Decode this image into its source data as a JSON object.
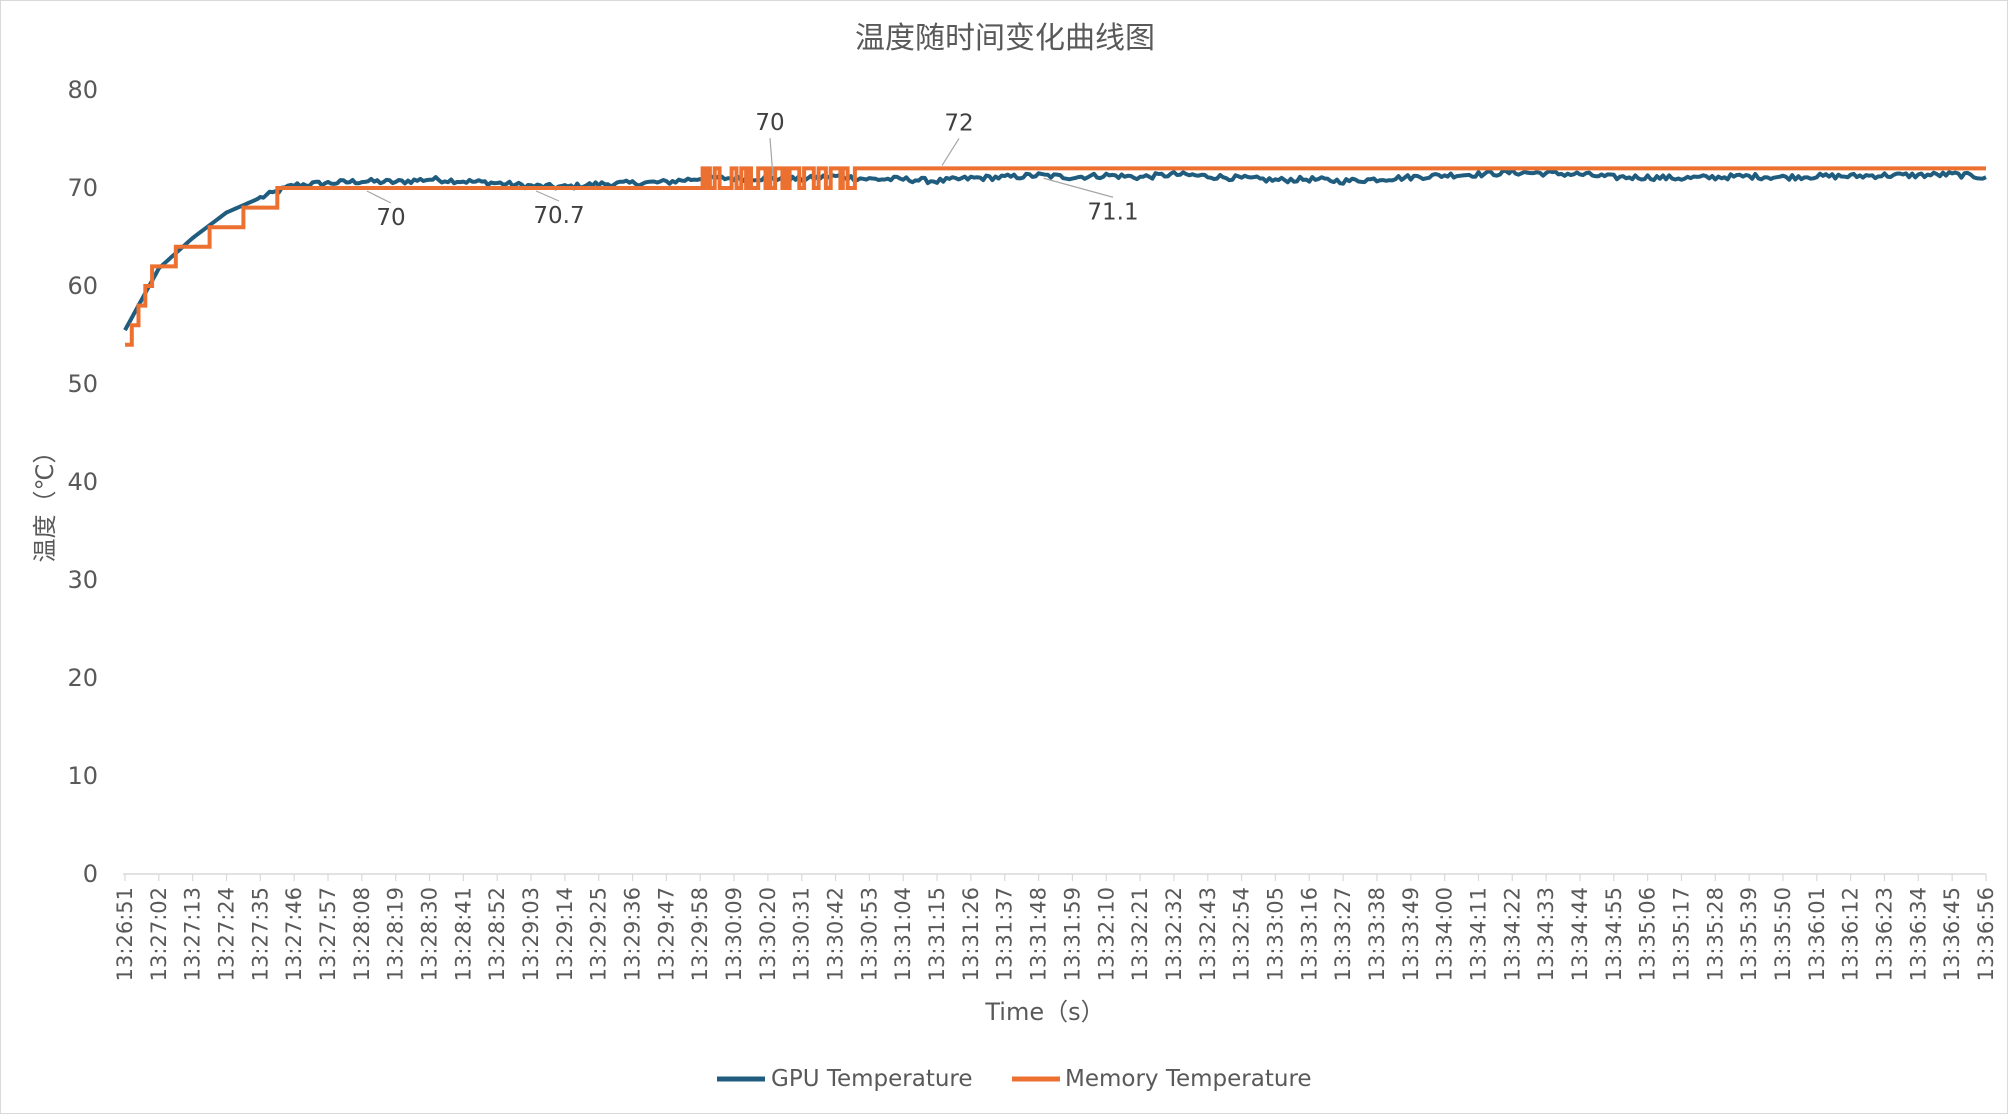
{
  "chart_data": {
    "type": "line",
    "title": "温度随时间变化曲线图",
    "xlabel": "Time（s）",
    "ylabel": "温度（℃）",
    "ylim": [
      0,
      80
    ],
    "yticks": [
      0,
      10,
      20,
      30,
      40,
      50,
      60,
      70,
      80
    ],
    "grid": false,
    "legend": "bottom",
    "xlim": [
      "13:26:51",
      "13:36:56"
    ],
    "categories": [
      "13:26:51",
      "13:27:02",
      "13:27:13",
      "13:27:24",
      "13:27:35",
      "13:27:46",
      "13:27:57",
      "13:28:08",
      "13:28:19",
      "13:28:30",
      "13:28:41",
      "13:28:52",
      "13:29:03",
      "13:29:14",
      "13:29:25",
      "13:29:36",
      "13:29:47",
      "13:29:58",
      "13:30:09",
      "13:30:20",
      "13:30:31",
      "13:30:42",
      "13:30:53",
      "13:31:04",
      "13:31:15",
      "13:31:26",
      "13:31:37",
      "13:31:48",
      "13:31:59",
      "13:32:10",
      "13:32:21",
      "13:32:32",
      "13:32:43",
      "13:32:54",
      "13:33:05",
      "13:33:16",
      "13:33:27",
      "13:33:38",
      "13:33:49",
      "13:34:00",
      "13:34:11",
      "13:34:22",
      "13:34:33",
      "13:34:44",
      "13:34:55",
      "13:35:06",
      "13:35:17",
      "13:35:28",
      "13:35:39",
      "13:35:50",
      "13:36:01",
      "13:36:12",
      "13:36:23",
      "13:36:34",
      "13:36:45",
      "13:36:56"
    ],
    "series": [
      {
        "name": "GPU Temperature",
        "color": "#1F5C7E",
        "values": [
          55.5,
          61.8,
          64.9,
          67.5,
          69.0,
          70.3,
          70.5,
          70.7,
          70.6,
          70.9,
          70.7,
          70.5,
          70.2,
          70.1,
          70.4,
          70.5,
          70.6,
          71.0,
          71.0,
          71.0,
          70.9,
          71.2,
          70.9,
          70.9,
          70.7,
          71.0,
          71.1,
          71.3,
          71.1,
          71.3,
          71.1,
          71.4,
          71.2,
          71.0,
          70.8,
          70.9,
          70.7,
          70.9,
          71.1,
          71.3,
          71.4,
          71.6,
          71.5,
          71.4,
          71.1,
          71.1,
          71.0,
          71.1,
          71.2,
          71.1,
          71.2,
          71.2,
          71.3,
          71.3,
          71.4,
          71.1
        ]
      },
      {
        "name": "Memory Temperature",
        "color": "#EC7131",
        "values": [
          54,
          62,
          64,
          66,
          68,
          70,
          70,
          70,
          70,
          70,
          70,
          70,
          70,
          70,
          70,
          70,
          70,
          70,
          72,
          70,
          72,
          72,
          72,
          72,
          72,
          72,
          72,
          72,
          72,
          72,
          72,
          72,
          72,
          72,
          72,
          72,
          72,
          72,
          72,
          72,
          72,
          72,
          72,
          72,
          72,
          72,
          72,
          72,
          72,
          72,
          72,
          72,
          72,
          72,
          72,
          72
        ]
      }
    ],
    "annotations": [
      "70",
      "70.7",
      "70",
      "72",
      "71.1"
    ]
  }
}
